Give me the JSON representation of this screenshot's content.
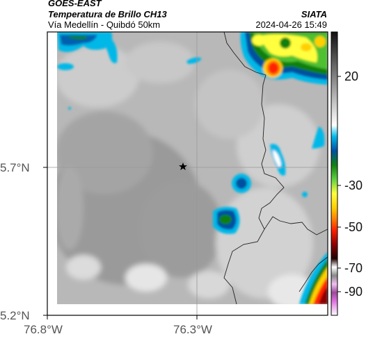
{
  "header": {
    "source": "GOES-EAST",
    "product": "Temperatura de Brillo CH13",
    "region": "Vía Medellín - Quibdó 50km",
    "org": "SIATA",
    "timestamp": "2024-04-26 15:49"
  },
  "axes": {
    "lat_ticks": [
      "5.7°N",
      "5.2°N"
    ],
    "lon_ticks": [
      "76.8°W",
      "76.3°W"
    ]
  },
  "colorbar": {
    "labels": [
      "20",
      "-30",
      "-50",
      "-70",
      "-90"
    ]
  },
  "colors": {
    "frame": "#000000",
    "border_lines": "#222222",
    "grid_lines": "#999999"
  }
}
